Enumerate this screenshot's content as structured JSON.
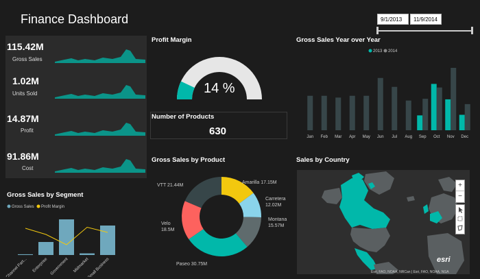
{
  "header": {
    "title": "Finance Dashboard",
    "date_start": "9/1/2013",
    "date_end": "11/9/2014"
  },
  "kpis": [
    {
      "value": "115.42M",
      "label": "Gross Sales"
    },
    {
      "value": "1.02M",
      "label": "Units Sold"
    },
    {
      "value": "14.87M",
      "label": "Profit"
    },
    {
      "value": "91.86M",
      "label": "Cost"
    }
  ],
  "profit_margin": {
    "title": "Profit Margin",
    "display": "14 %",
    "fraction": 0.14
  },
  "products": {
    "title": "Number of Products",
    "value": "630"
  },
  "colors": {
    "teal": "#01b8aa",
    "dark_series": "#374649",
    "yellow": "#f2c80f",
    "red": "#fd625e",
    "light_blue": "#8ad4eb",
    "grey": "#5f6b6d",
    "segment_bar": "#6fa8bd"
  },
  "chart_data": [
    {
      "type": "bar",
      "title": "Gross Sales Year over Year",
      "categories": [
        "Jan",
        "Feb",
        "Mar",
        "Apr",
        "May",
        "Jun",
        "Jul",
        "Aug",
        "Sep",
        "Oct",
        "Nov",
        "Dec"
      ],
      "series": [
        {
          "name": "2013",
          "values": [
            null,
            null,
            null,
            null,
            null,
            null,
            null,
            null,
            2.5,
            7.8,
            5.2,
            2.6
          ]
        },
        {
          "name": "2014",
          "values": [
            5.8,
            5.8,
            5.5,
            5.8,
            5.8,
            8.8,
            7.3,
            5.0,
            5.3,
            7.2,
            10.5,
            4.4
          ]
        }
      ],
      "ylim": [
        0,
        12
      ],
      "legend": "top"
    },
    {
      "type": "pie",
      "title": "Gross Sales by Product",
      "labels": [
        "Amarilla",
        "Carretera",
        "Montana",
        "Paseo",
        "Velo",
        "VTT"
      ],
      "values": [
        17.15,
        12.02,
        15.57,
        30.75,
        18.5,
        21.44
      ],
      "value_labels": [
        "17.15M",
        "12.02M",
        "15.57M",
        "30.75M",
        "18.5M",
        "21.44M"
      ]
    },
    {
      "type": "bar",
      "title": "Gross Sales by Segment",
      "categories": [
        "Channel Part...",
        "Enterprise",
        "Government",
        "Midmarket",
        "Small Business"
      ],
      "series": [
        {
          "name": "Gross Sales",
          "values": [
            1.1,
            19.0,
            52.0,
            2.4,
            43.0
          ]
        },
        {
          "name": "Profit Margin",
          "values": [
            26,
            20,
            10,
            27,
            22
          ]
        }
      ],
      "ylim": [
        0,
        60
      ],
      "legend": "top-left"
    }
  ],
  "sales_by_country": {
    "title": "Sales by Country",
    "zoom_in": "+",
    "zoom_out": "−",
    "esri": "esri",
    "attribution": "Esri, FAO, NOAA, NRCan | Esri, FAO, NOAA, NGA"
  }
}
